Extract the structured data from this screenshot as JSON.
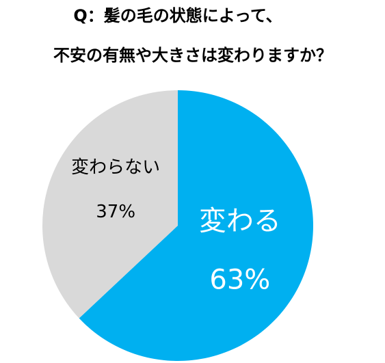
{
  "chart_data": {
    "type": "pie",
    "title": [
      "Q：髪の毛の状態によって、",
      "不安の有無や大きさは変わりますか？"
    ],
    "categories": [
      "変わる",
      "変わらない"
    ],
    "values": [
      63,
      37
    ],
    "value_labels": [
      "63%",
      "37%"
    ],
    "colors": [
      "#00b0f0",
      "#d9d9d9"
    ]
  }
}
